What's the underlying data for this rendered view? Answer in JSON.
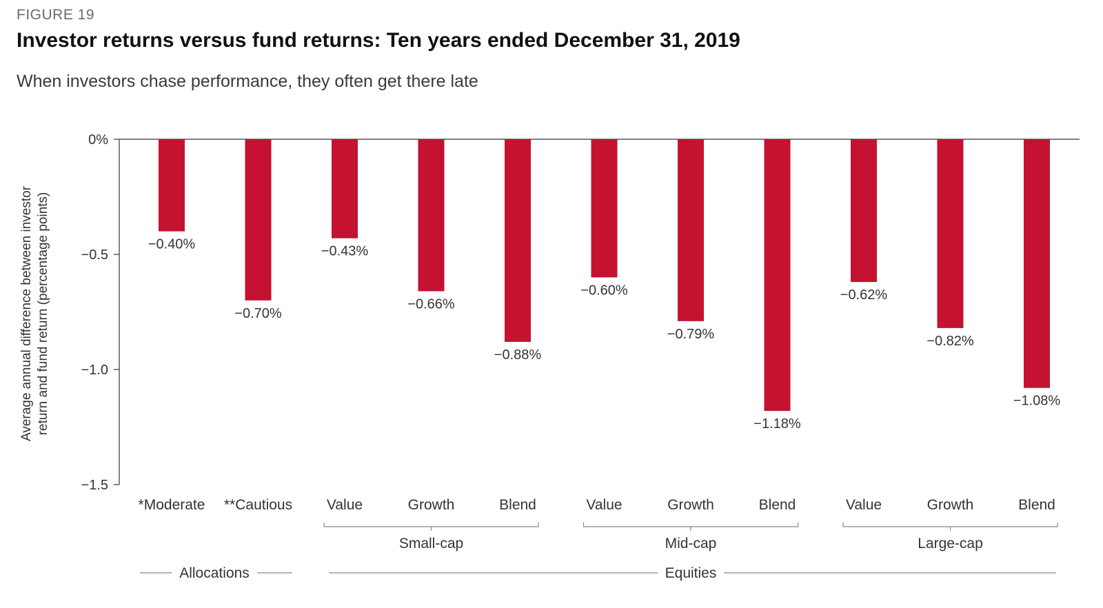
{
  "figure_label": "FIGURE 19",
  "title": "Investor returns versus fund returns: Ten years ended December 31, 2019",
  "subtitle": "When investors chase performance, they often get there late",
  "colors": {
    "bar": "#c41230",
    "axis": "#333333",
    "text": "#333333",
    "group_line": "#888888"
  },
  "chart_data": {
    "type": "bar",
    "ylabel": [
      "Average annual difference between investor",
      "return and fund return (percentage points)"
    ],
    "ylim": [
      -1.5,
      0
    ],
    "yticks": [
      0,
      -0.5,
      -1.0,
      -1.5
    ],
    "ytick_labels": [
      "0%",
      "−0.5",
      "−1.0",
      "−1.5"
    ],
    "grid": false,
    "categories": [
      "*Moderate",
      "**Cautious",
      "Value",
      "Growth",
      "Blend",
      "Value",
      "Growth",
      "Blend",
      "Value",
      "Growth",
      "Blend"
    ],
    "values": [
      -0.4,
      -0.7,
      -0.43,
      -0.66,
      -0.88,
      -0.6,
      -0.79,
      -1.18,
      -0.62,
      -0.82,
      -1.08
    ],
    "value_labels": [
      "−0.40%",
      "−0.70%",
      "−0.43%",
      "−0.66%",
      "−0.88%",
      "−0.60%",
      "−0.79%",
      "−1.18%",
      "−0.62%",
      "−0.82%",
      "−1.08%"
    ],
    "subgroups": [
      {
        "label": "Small-cap",
        "start": 2,
        "end": 4
      },
      {
        "label": "Mid-cap",
        "start": 5,
        "end": 7
      },
      {
        "label": "Large-cap",
        "start": 8,
        "end": 10
      }
    ],
    "groups": [
      {
        "label": "Allocations",
        "start": 0,
        "end": 1
      },
      {
        "label": "Equities",
        "start": 2,
        "end": 10
      }
    ]
  }
}
